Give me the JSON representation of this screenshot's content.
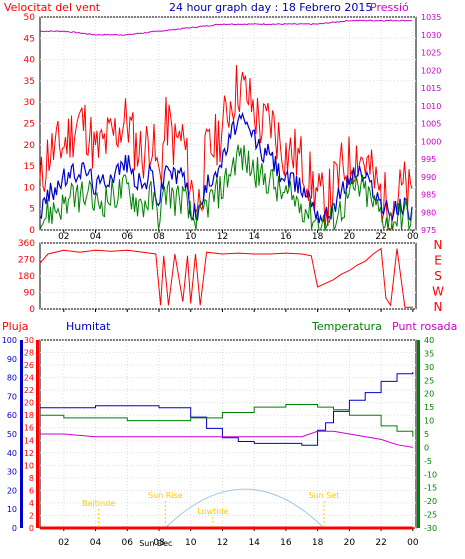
{
  "header": {
    "left_label": "Velocitat del vent",
    "title": "24 hour graph day : 18 Febrero 2015",
    "right_label": "Pressió"
  },
  "colors": {
    "wind_gust": "#ff0000",
    "wind_avg": "#0000cc",
    "wind_low": "#008000",
    "pressure": "#cc00cc",
    "direction": "#ff0000",
    "rain": "#ff0000",
    "humidity": "#0000cc",
    "temperature": "#008000",
    "dewpoint": "#cc00cc",
    "sun": "#99ccee",
    "annotation": "#ffcc00",
    "axis_left": "#ff0000",
    "axis_humidity": "#0000cc",
    "axis_right_pressure": "#cc00cc",
    "axis_right_temp": "#008000"
  },
  "chart_data": [
    {
      "type": "line",
      "title": "24 hour graph day : 18 Febrero 2015",
      "ylabel": "Velocitat del vent",
      "y2label": "Pressió",
      "x_ticks": [
        "02",
        "04",
        "06",
        "08",
        "10",
        "12",
        "14",
        "16",
        "18",
        "20",
        "22",
        "00"
      ],
      "x_range_hours": [
        0.5,
        24.2
      ],
      "ylim": [
        0,
        50
      ],
      "y_ticks": [
        0,
        5,
        10,
        15,
        20,
        25,
        30,
        35,
        40,
        45,
        50
      ],
      "y2lim": [
        975,
        1035
      ],
      "y2_ticks": [
        975,
        980,
        985,
        990,
        995,
        1000,
        1005,
        1010,
        1015,
        1020,
        1025,
        1030,
        1035
      ],
      "series": [
        {
          "name": "gust",
          "axis": "left",
          "hours": [
            0.5,
            1,
            2,
            3,
            3.5,
            4,
            5,
            6,
            6.5,
            7,
            7.5,
            8,
            8.5,
            9,
            9.5,
            10,
            10.5,
            11,
            11.5,
            12,
            12.5,
            13,
            13.5,
            14,
            14.5,
            15,
            15.5,
            16,
            16.5,
            17,
            17.5,
            18,
            18.5,
            19,
            19.5,
            20,
            20.5,
            21,
            21.5,
            22,
            22.5,
            23,
            23.5,
            24
          ],
          "values": [
            10,
            18,
            20,
            26,
            24,
            18,
            22,
            26,
            20,
            18,
            22,
            12,
            26,
            20,
            22,
            10,
            6,
            18,
            20,
            24,
            30,
            34,
            32,
            28,
            24,
            26,
            22,
            18,
            18,
            16,
            12,
            8,
            6,
            10,
            14,
            16,
            18,
            16,
            12,
            8,
            6,
            8,
            10,
            6
          ]
        },
        {
          "name": "average",
          "axis": "left",
          "hours": [
            0.5,
            1,
            2,
            3,
            3.5,
            4,
            5,
            6,
            6.5,
            7,
            7.5,
            8,
            8.5,
            9,
            9.5,
            10,
            10.5,
            11,
            11.5,
            12,
            12.5,
            13,
            13.5,
            14,
            14.5,
            15,
            15.5,
            16,
            16.5,
            17,
            17.5,
            18,
            18.5,
            19,
            19.5,
            20,
            20.5,
            21,
            21.5,
            22,
            22.5,
            23,
            23.5,
            24
          ],
          "values": [
            4,
            8,
            12,
            14,
            14,
            10,
            13,
            16,
            12,
            10,
            14,
            6,
            16,
            12,
            14,
            5,
            4,
            10,
            14,
            16,
            22,
            26,
            24,
            22,
            18,
            18,
            14,
            12,
            11,
            10,
            8,
            4,
            3,
            6,
            9,
            12,
            14,
            12,
            10,
            6,
            4,
            5,
            6,
            4
          ]
        },
        {
          "name": "low",
          "axis": "left",
          "hours": [
            0.5,
            1,
            2,
            3,
            3.5,
            4,
            5,
            6,
            6.5,
            7,
            7.5,
            8,
            8.5,
            9,
            9.5,
            10,
            10.5,
            11,
            11.5,
            12,
            12.5,
            13,
            13.5,
            14,
            14.5,
            15,
            15.5,
            16,
            16.5,
            17,
            17.5,
            18,
            18.5,
            19,
            19.5,
            20,
            20.5,
            21,
            21.5,
            22,
            22.5,
            23,
            23.5,
            24
          ],
          "values": [
            2,
            4,
            6,
            8,
            8,
            6,
            8,
            10,
            7,
            6,
            8,
            3,
            10,
            7,
            8,
            3,
            2,
            6,
            8,
            10,
            14,
            18,
            16,
            14,
            12,
            12,
            9,
            8,
            7,
            6,
            4,
            2,
            1,
            3,
            5,
            8,
            10,
            9,
            6,
            4,
            2,
            3,
            4,
            2
          ]
        },
        {
          "name": "pressure",
          "axis": "right",
          "hours": [
            0.5,
            2,
            4,
            6,
            8,
            10,
            12,
            14,
            16,
            18,
            20,
            22,
            24
          ],
          "values": [
            1031,
            1031,
            1030,
            1030,
            1031,
            1032,
            1033,
            1033,
            1033,
            1033,
            1034,
            1034,
            1034
          ]
        }
      ]
    },
    {
      "type": "line",
      "title": "",
      "ylim": [
        0,
        360
      ],
      "y_ticks": [
        0,
        90,
        180,
        270,
        360
      ],
      "y2_ticks": [
        "N",
        "W",
        "S",
        "E",
        "N"
      ],
      "series": [
        {
          "name": "direction",
          "hours": [
            0.5,
            1,
            2,
            3,
            4,
            5,
            6,
            7,
            7.8,
            8.1,
            8.3,
            8.6,
            9,
            9.5,
            9.8,
            10,
            10.3,
            10.6,
            11,
            12,
            13,
            14,
            15,
            16,
            17,
            17.6,
            18,
            18.5,
            19,
            19.5,
            20,
            20.5,
            21,
            21.5,
            22,
            22.3,
            22.6,
            23,
            23.5,
            24
          ],
          "values": [
            250,
            300,
            320,
            310,
            320,
            315,
            320,
            310,
            300,
            20,
            290,
            20,
            300,
            40,
            290,
            30,
            300,
            20,
            310,
            300,
            305,
            300,
            300,
            305,
            300,
            290,
            120,
            140,
            160,
            190,
            210,
            240,
            260,
            300,
            330,
            60,
            20,
            330,
            10,
            10
          ]
        }
      ]
    },
    {
      "type": "line",
      "title": "",
      "legend": [
        "Pluja",
        "Humitat",
        "Temperatura",
        "Punt rosada"
      ],
      "x_ticks": [
        "02",
        "04",
        "06",
        "08",
        "10",
        "12",
        "14",
        "16",
        "18",
        "20",
        "22",
        "00"
      ],
      "rain_axis": {
        "ylim": [
          0,
          30
        ],
        "ticks": [
          0,
          2,
          4,
          6,
          8,
          10,
          12,
          14,
          16,
          18,
          20,
          22,
          24,
          26,
          28,
          30
        ]
      },
      "humidity_axis": {
        "ylim": [
          0,
          100
        ],
        "ticks": [
          0,
          10,
          20,
          30,
          40,
          50,
          60,
          70,
          80,
          90,
          100
        ]
      },
      "temp_axis": {
        "ylim": [
          -30,
          40
        ],
        "ticks": [
          -30,
          -25,
          -20,
          -15,
          -10,
          -5,
          0,
          5,
          10,
          15,
          20,
          25,
          30,
          35,
          40
        ]
      },
      "series": [
        {
          "name": "Humitat",
          "axis": "humidity",
          "hours": [
            0.5,
            2,
            4,
            6,
            7,
            8,
            9,
            10,
            11,
            12,
            13,
            14,
            15,
            16,
            17,
            17.5,
            18,
            18.5,
            19,
            20,
            21,
            22,
            23,
            24
          ],
          "values": [
            64,
            64,
            65,
            65,
            65,
            64,
            64,
            59,
            53,
            48,
            46,
            45,
            45,
            45,
            44,
            44,
            52,
            56,
            62,
            68,
            72,
            78,
            82,
            83
          ]
        },
        {
          "name": "Temperatura",
          "axis": "temp",
          "hours": [
            0.5,
            2,
            4,
            6,
            8,
            10,
            12,
            14,
            16,
            17,
            18,
            19,
            20,
            22,
            23,
            24
          ],
          "values": [
            12,
            11,
            11,
            10,
            10,
            11,
            13,
            15,
            16,
            16,
            15,
            14,
            12,
            8,
            6,
            4
          ]
        },
        {
          "name": "Punt rosada",
          "axis": "temp",
          "hours": [
            0.5,
            2,
            4,
            6,
            8,
            10,
            12,
            14,
            16,
            17,
            18,
            19,
            20,
            22,
            23,
            24
          ],
          "values": [
            5,
            5,
            4,
            4,
            4,
            4,
            4,
            4,
            4,
            4,
            6,
            6,
            5,
            3,
            1,
            0
          ]
        },
        {
          "name": "Pluja",
          "axis": "rain",
          "hours": [
            0.5,
            24
          ],
          "values": [
            0,
            0
          ]
        }
      ],
      "annotations": [
        {
          "label": "Bajtinde",
          "hour": 4.2
        },
        {
          "label": "Sun Rise",
          "hour": 8.4
        },
        {
          "label": "Lowtide",
          "hour": 11.4
        },
        {
          "label": "Sun Set",
          "hour": 18.4
        },
        {
          "label": "Sun Dec",
          "hour": 7.8
        }
      ],
      "sun_arc": {
        "rise_hour": 8.4,
        "set_hour": 18.4,
        "peak_value_rain_axis": 6.2
      }
    }
  ]
}
